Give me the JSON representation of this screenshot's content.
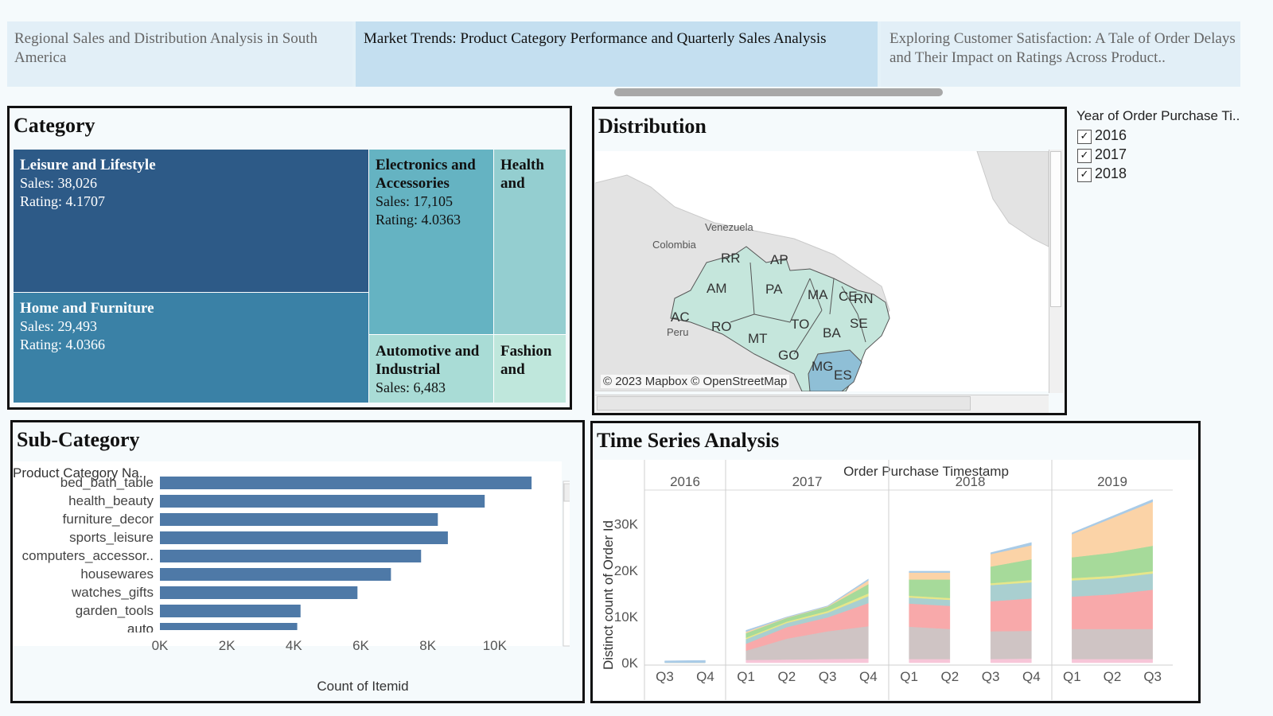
{
  "tabs": [
    {
      "label": "Regional Sales and Distribution Analysis in South America",
      "active": false
    },
    {
      "label": "Market Trends: Product Category Performance and Quarterly Sales Analysis",
      "active": true
    },
    {
      "label": "Exploring Customer Satisfaction: A Tale of Order Delays and Their Impact on Ratings Across Product..",
      "active": false
    }
  ],
  "category": {
    "title": "Category",
    "cells": [
      {
        "name": "Leisure and Lifestyle",
        "sales": "Sales: 38,026",
        "rating": "Rating: 4.1707",
        "color": "#2d5a87"
      },
      {
        "name": "Home and Furniture",
        "sales": "Sales: 29,493",
        "rating": "Rating: 4.0366",
        "color": "#3a81a6"
      },
      {
        "name": "Electronics and Accessories",
        "sales": "Sales: 17,105",
        "rating": "Rating: 4.0363",
        "color": "#65b3c2"
      },
      {
        "name": "Health and",
        "sales": "",
        "rating": "",
        "color": "#94ced0"
      },
      {
        "name": "Automotive and Industrial",
        "sales": "Sales: 6,483",
        "rating": "",
        "color": "#a9dcd6"
      },
      {
        "name": "Fashion and",
        "sales": "",
        "rating": "",
        "color": "#bfe7dc"
      }
    ]
  },
  "distribution": {
    "title": "Distribution",
    "credit": "© 2023 Mapbox © OpenStreetMap",
    "countries": [
      "Venezuela",
      "Colombia",
      "Peru"
    ],
    "states": [
      "RR",
      "AP",
      "AM",
      "PA",
      "MA",
      "CE",
      "RN",
      "AC",
      "RO",
      "TO",
      "SE",
      "BA",
      "MT",
      "GO",
      "MG",
      "ES"
    ]
  },
  "filter": {
    "title": "Year of Order Purchase Ti..",
    "options": [
      {
        "label": "2016",
        "checked": true
      },
      {
        "label": "2017",
        "checked": true
      },
      {
        "label": "2018",
        "checked": true
      }
    ],
    "check_glyph": "✓"
  },
  "subcategory": {
    "title": "Sub-Category",
    "column_header": "Product Category Na..",
    "xlabel": "Count of Itemid",
    "bar_color": "#4e79a7"
  },
  "timeseries": {
    "title": "Time Series Analysis",
    "column_header": "Order Purchase Timestamp",
    "ylabel": "Distinct count of Order Id"
  },
  "chart_data": [
    {
      "type": "bar",
      "orientation": "horizontal",
      "categories": [
        "bed_bath_table",
        "health_beauty",
        "furniture_decor",
        "sports_leisure",
        "computers_accessor..",
        "housewares",
        "watches_gifts",
        "garden_tools",
        "auto"
      ],
      "values": [
        11100,
        9700,
        8300,
        8600,
        7800,
        6900,
        5900,
        4200,
        4100
      ],
      "xlabel": "Count of Itemid",
      "ylabel": "Product Category Na..",
      "xticks": [
        "0K",
        "2K",
        "4K",
        "6K",
        "8K",
        "10K"
      ],
      "xlim": [
        0,
        12000
      ]
    },
    {
      "type": "area",
      "stacked": true,
      "years": [
        "2016",
        "2017",
        "2018",
        "2019"
      ],
      "quarters": [
        [
          "Q3",
          "Q4"
        ],
        [
          "Q1",
          "Q2",
          "Q3",
          "Q4"
        ],
        [
          "Q1",
          "Q2",
          "Q3",
          "Q4"
        ],
        [
          "Q1",
          "Q2",
          "Q3"
        ]
      ],
      "ylabel": "Distinct count of Order Id",
      "yticks": [
        "0K",
        "10K",
        "20K",
        "30K"
      ],
      "ylim": [
        0,
        37000
      ],
      "series_colors": [
        "#f7c6d8",
        "#cfc4c4",
        "#f8a9aa",
        "#a9cfd0",
        "#e6e68a",
        "#a6da9a",
        "#fbd3a7",
        "#a9cbe7"
      ],
      "segments": [
        {
          "year": "2016",
          "from": 0,
          "to": 1,
          "stacks": [
            [
              0,
              0,
              0,
              0,
              0,
              0,
              0,
              400
            ],
            [
              0,
              0,
              0,
              0,
              0,
              0,
              0,
              500
            ]
          ]
        },
        {
          "year": "2017",
          "from": 0,
          "to": 3,
          "stacks": [
            [
              600,
              2000,
              1500,
              1000,
              300,
              1000,
              300,
              300
            ],
            [
              700,
              4500,
              2500,
              900,
              300,
              800,
              100,
              100
            ],
            [
              800,
              6000,
              3000,
              1000,
              400,
              900,
              100,
              100
            ],
            [
              900,
              7000,
              5000,
              1500,
              600,
              2000,
              800,
              300
            ]
          ]
        },
        {
          "year": "2018",
          "from": 0,
          "to": 1,
          "stacks": [
            [
              800,
              7000,
              5000,
              1300,
              400,
              3500,
              1500,
              300
            ],
            [
              800,
              6500,
              5000,
              1300,
              400,
              4000,
              1500,
              300
            ]
          ]
        },
        {
          "year": "2018",
          "from": 2,
          "to": 3,
          "stacks": [
            [
              800,
              6000,
              6500,
              3500,
              400,
              3600,
              2700,
              300
            ],
            [
              900,
              6000,
              7000,
              3500,
              500,
              4500,
              3000,
              600
            ]
          ]
        },
        {
          "year": "2019",
          "from": 0,
          "to": 2,
          "stacks": [
            [
              800,
              6500,
              7000,
              3500,
              500,
              4500,
              5000,
              300
            ],
            [
              800,
              6500,
              7500,
              3500,
              500,
              5000,
              7500,
              400
            ],
            [
              800,
              6500,
              8500,
              3500,
              500,
              5500,
              9500,
              500
            ]
          ]
        }
      ]
    }
  ]
}
